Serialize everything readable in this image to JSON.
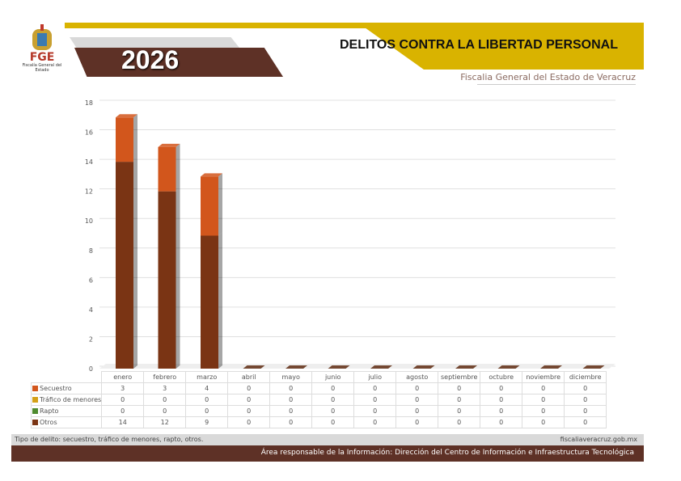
{
  "header": {
    "logo_text": "FGE",
    "logo_subtitle": "Fiscalía General del Estado",
    "year": "2026",
    "title": "DELITOS CONTRA LA LIBERTAD PERSONAL",
    "subtitle": "Fiscalia General del Estado de Veracruz"
  },
  "chart_data": {
    "type": "bar",
    "stacked": true,
    "categories": [
      "enero",
      "febrero",
      "marzo",
      "abril",
      "mayo",
      "junio",
      "julio",
      "agosto",
      "septiembre",
      "octubre",
      "noviembre",
      "diciembre"
    ],
    "series": [
      {
        "name": "Secuestro",
        "color": "#d2561c",
        "values": [
          3,
          3,
          4,
          0,
          0,
          0,
          0,
          0,
          0,
          0,
          0,
          0
        ]
      },
      {
        "name": "Tráfico de menores",
        "color": "#d4a017",
        "values": [
          0,
          0,
          0,
          0,
          0,
          0,
          0,
          0,
          0,
          0,
          0,
          0
        ]
      },
      {
        "name": "Rapto",
        "color": "#4e8a2e",
        "values": [
          0,
          0,
          0,
          0,
          0,
          0,
          0,
          0,
          0,
          0,
          0,
          0
        ]
      },
      {
        "name": "Otros",
        "color": "#7a3414",
        "values": [
          14,
          12,
          9,
          0,
          0,
          0,
          0,
          0,
          0,
          0,
          0,
          0
        ]
      }
    ],
    "ylim": [
      0,
      18
    ],
    "yticks": [
      0,
      2,
      4,
      6,
      8,
      10,
      12,
      14,
      16,
      18
    ],
    "grid": true,
    "legend": "data-table"
  },
  "footer": {
    "note": "Tipo de delito: secuestro, tráfico de menores, rapto, otros.",
    "website": "fiscaliaveracruz.gob.mx",
    "responsible": "Área responsable de la Información: Dirección del Centro de Información e Infraestructura Tecnológica"
  }
}
